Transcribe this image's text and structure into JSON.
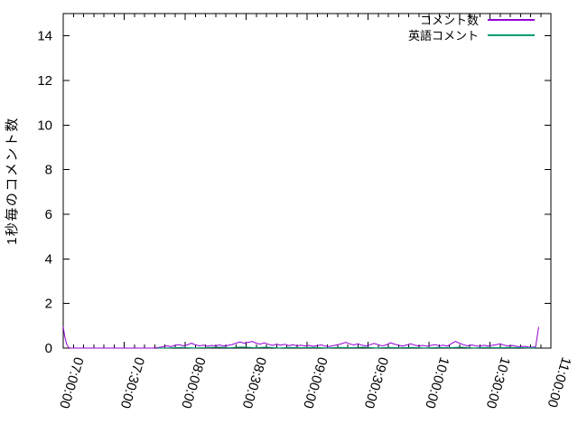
{
  "window": {
    "background": "#ffffff"
  },
  "chart_data": {
    "type": "line",
    "title": "",
    "xlabel": "",
    "ylabel": "1秒毎のコメント数",
    "ylim": [
      0,
      15
    ],
    "yticks": [
      0,
      2,
      4,
      6,
      8,
      10,
      12,
      14
    ],
    "xticks": [
      "07:00:00",
      "07:30:00",
      "08:00:00",
      "08:30:00",
      "09:00:00",
      "09:30:00",
      "10:00:00",
      "10:30:00",
      "11:00:00"
    ],
    "x_minor_interval_seconds": 300,
    "grid": false,
    "legend_position": "top-right-inside",
    "colors": {
      "axis": "#000000",
      "background": "#ffffff"
    },
    "series": [
      {
        "name": "コメント数",
        "color": "#9400d3",
        "points": [
          [
            "07:00:00",
            0.97
          ],
          [
            "07:00:40",
            0.55
          ],
          [
            "07:01:40",
            0.18
          ],
          [
            "07:02:40",
            0.02
          ],
          [
            "07:03:30",
            0
          ],
          [
            "07:08:00",
            0
          ],
          [
            "07:14:00",
            0
          ],
          [
            "07:20:00",
            0
          ],
          [
            "07:26:00",
            0
          ],
          [
            "07:32:00",
            0
          ],
          [
            "07:38:00",
            0
          ],
          [
            "07:44:00",
            0
          ],
          [
            "07:46:30",
            0.02
          ],
          [
            "07:49:00",
            0.06
          ],
          [
            "07:51:00",
            0.1
          ],
          [
            "07:53:00",
            0.07
          ],
          [
            "07:55:00",
            0.12
          ],
          [
            "07:57:00",
            0.16
          ],
          [
            "07:59:00",
            0.1
          ],
          [
            "08:01:00",
            0.14
          ],
          [
            "08:03:00",
            0.22
          ],
          [
            "08:05:00",
            0.15
          ],
          [
            "08:07:00",
            0.1
          ],
          [
            "08:09:00",
            0.13
          ],
          [
            "08:11:00",
            0.08
          ],
          [
            "08:13:00",
            0.12
          ],
          [
            "08:15:00",
            0.1
          ],
          [
            "08:17:00",
            0.14
          ],
          [
            "08:19:00",
            0.09
          ],
          [
            "08:21:00",
            0.12
          ],
          [
            "08:23:00",
            0.16
          ],
          [
            "08:25:00",
            0.22
          ],
          [
            "08:27:00",
            0.28
          ],
          [
            "08:29:00",
            0.22
          ],
          [
            "08:31:00",
            0.26
          ],
          [
            "08:33:00",
            0.3
          ],
          [
            "08:35:00",
            0.22
          ],
          [
            "08:37:00",
            0.18
          ],
          [
            "08:39:00",
            0.24
          ],
          [
            "08:41:00",
            0.17
          ],
          [
            "08:43:00",
            0.12
          ],
          [
            "08:45:00",
            0.18
          ],
          [
            "08:47:00",
            0.13
          ],
          [
            "08:49:00",
            0.17
          ],
          [
            "08:51:00",
            0.11
          ],
          [
            "08:53:00",
            0.15
          ],
          [
            "08:55:00",
            0.1
          ],
          [
            "08:57:00",
            0.13
          ],
          [
            "08:59:00",
            0.09
          ],
          [
            "09:01:00",
            0.12
          ],
          [
            "09:03:00",
            0.08
          ],
          [
            "09:05:00",
            0.11
          ],
          [
            "09:07:00",
            0.14
          ],
          [
            "09:09:00",
            0.09
          ],
          [
            "09:11:00",
            0.07
          ],
          [
            "09:13:00",
            0.11
          ],
          [
            "09:15:00",
            0.15
          ],
          [
            "09:17:00",
            0.2
          ],
          [
            "09:19:00",
            0.26
          ],
          [
            "09:21:00",
            0.19
          ],
          [
            "09:23:00",
            0.14
          ],
          [
            "09:25:00",
            0.19
          ],
          [
            "09:27:00",
            0.13
          ],
          [
            "09:29:00",
            0.1
          ],
          [
            "09:31:00",
            0.15
          ],
          [
            "09:33:00",
            0.21
          ],
          [
            "09:35:00",
            0.15
          ],
          [
            "09:37:00",
            0.1
          ],
          [
            "09:39:00",
            0.14
          ],
          [
            "09:41:00",
            0.24
          ],
          [
            "09:43:00",
            0.18
          ],
          [
            "09:45:00",
            0.13
          ],
          [
            "09:47:00",
            0.09
          ],
          [
            "09:49:00",
            0.14
          ],
          [
            "09:51:00",
            0.19
          ],
          [
            "09:53:00",
            0.13
          ],
          [
            "09:55:00",
            0.09
          ],
          [
            "09:57:00",
            0.12
          ],
          [
            "09:59:00",
            0.08
          ],
          [
            "10:01:00",
            0.12
          ],
          [
            "10:03:00",
            0.16
          ],
          [
            "10:05:00",
            0.1
          ],
          [
            "10:07:00",
            0.13
          ],
          [
            "10:09:00",
            0.09
          ],
          [
            "10:11:00",
            0.2
          ],
          [
            "10:13:00",
            0.3
          ],
          [
            "10:15:00",
            0.22
          ],
          [
            "10:17:00",
            0.15
          ],
          [
            "10:19:00",
            0.1
          ],
          [
            "10:21:00",
            0.14
          ],
          [
            "10:23:00",
            0.1
          ],
          [
            "10:25:00",
            0.08
          ],
          [
            "10:27:00",
            0.13
          ],
          [
            "10:29:00",
            0.09
          ],
          [
            "10:31:00",
            0.12
          ],
          [
            "10:33:00",
            0.15
          ],
          [
            "10:35:00",
            0.19
          ],
          [
            "10:37:00",
            0.13
          ],
          [
            "10:39:00",
            0.09
          ],
          [
            "10:41:00",
            0.12
          ],
          [
            "10:43:00",
            0.08
          ],
          [
            "10:45:00",
            0.06
          ],
          [
            "10:47:00",
            0.08
          ],
          [
            "10:49:00",
            0.05
          ],
          [
            "10:51:00",
            0.04
          ],
          [
            "10:52:30",
            0.06
          ],
          [
            "10:54:00",
            0.95
          ]
        ]
      },
      {
        "name": "英語コメント",
        "color": "#009e73",
        "points": [
          [
            "07:46:30",
            0
          ],
          [
            "07:52:00",
            0.01
          ],
          [
            "07:58:00",
            0.03
          ],
          [
            "08:04:00",
            0.01
          ],
          [
            "08:10:00",
            0.02
          ],
          [
            "08:16:00",
            0.04
          ],
          [
            "08:22:00",
            0.02
          ],
          [
            "08:28:00",
            0.05
          ],
          [
            "08:34:00",
            0.02
          ],
          [
            "08:40:00",
            0.04
          ],
          [
            "08:46:00",
            0.01
          ],
          [
            "08:52:00",
            0.03
          ],
          [
            "08:58:00",
            0.02
          ],
          [
            "09:04:00",
            0.03
          ],
          [
            "09:10:00",
            0.01
          ],
          [
            "09:16:00",
            0.03
          ],
          [
            "09:22:00",
            0.02
          ],
          [
            "09:28:00",
            0.04
          ],
          [
            "09:34:00",
            0.01
          ],
          [
            "09:40:00",
            0.03
          ],
          [
            "09:46:00",
            0.02
          ],
          [
            "09:52:00",
            0.03
          ],
          [
            "09:58:00",
            0.01
          ],
          [
            "10:04:00",
            0.03
          ],
          [
            "10:10:00",
            0.02
          ],
          [
            "10:16:00",
            0.04
          ],
          [
            "10:22:00",
            0.01
          ],
          [
            "10:28:00",
            0.03
          ],
          [
            "10:34:00",
            0.02
          ],
          [
            "10:40:00",
            0.03
          ],
          [
            "10:46:00",
            0.02
          ],
          [
            "10:50:00",
            0.01
          ],
          [
            "10:53:00",
            0.02
          ]
        ]
      }
    ]
  }
}
